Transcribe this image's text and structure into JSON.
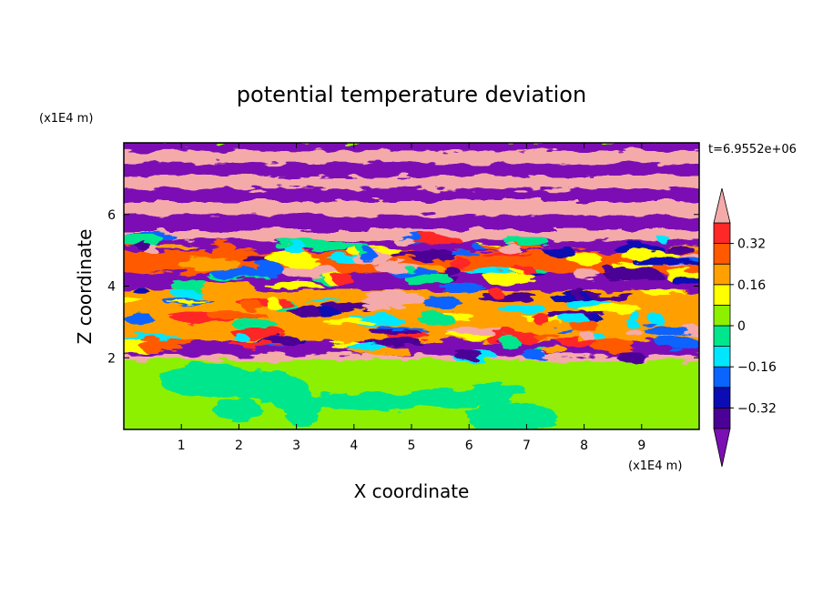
{
  "chart_data": {
    "type": "heatmap",
    "title": "potential temperature deviation",
    "xlabel": "X coordinate",
    "ylabel": "Z coordinate",
    "x_unit": "(x1E4 m)",
    "y_unit": "(x1E4 m)",
    "time_label": "t=6.9552e+06",
    "xlim": [
      0,
      10
    ],
    "ylim": [
      0,
      8
    ],
    "x_ticks": [
      1,
      2,
      3,
      4,
      5,
      6,
      7,
      8,
      9
    ],
    "y_ticks": [
      2,
      4,
      6
    ],
    "colorbar": {
      "levels": [
        -0.4,
        -0.32,
        -0.24,
        -0.16,
        -0.08,
        0,
        0.08,
        0.16,
        0.24,
        0.32,
        0.4
      ],
      "labels": [
        "0.32",
        "0.16",
        "0",
        "−0.16",
        "−0.32"
      ],
      "label_values": [
        0.32,
        0.16,
        0,
        -0.16,
        -0.32
      ],
      "colors": [
        "#7b0fb4",
        "#4b0096",
        "#0c0cb4",
        "#0a64ff",
        "#00e6ff",
        "#00e68c",
        "#8cf000",
        "#ffff00",
        "#ffa000",
        "#ff5a00",
        "#ff2828",
        "#f5aaaa"
      ],
      "extend": "both"
    },
    "bands": [
      {
        "z": [
          0.0,
          1.95
        ],
        "value": 0.05,
        "note": "lower layer green"
      },
      {
        "z": [
          1.95,
          2.1
        ],
        "value": 0.45
      },
      {
        "z": [
          2.1,
          2.5
        ],
        "value": -0.45
      },
      {
        "z": [
          2.5,
          3.9
        ],
        "value": 0.2
      },
      {
        "z": [
          3.9,
          4.4
        ],
        "value": -0.45
      },
      {
        "z": [
          4.4,
          5.0
        ],
        "value": 0.3
      },
      {
        "z": [
          5.0,
          5.3
        ],
        "value": -0.45
      },
      {
        "z": [
          5.3,
          5.6
        ],
        "value": 0.45
      },
      {
        "z": [
          5.6,
          6.0
        ],
        "value": -0.45
      },
      {
        "z": [
          6.0,
          6.4
        ],
        "value": 0.45
      },
      {
        "z": [
          6.4,
          6.75
        ],
        "value": -0.45
      },
      {
        "z": [
          6.75,
          7.1
        ],
        "value": 0.45
      },
      {
        "z": [
          7.1,
          7.45
        ],
        "value": -0.45
      },
      {
        "z": [
          7.45,
          7.8
        ],
        "value": 0.45
      },
      {
        "z": [
          7.8,
          8.0
        ],
        "value": -0.45
      }
    ]
  }
}
